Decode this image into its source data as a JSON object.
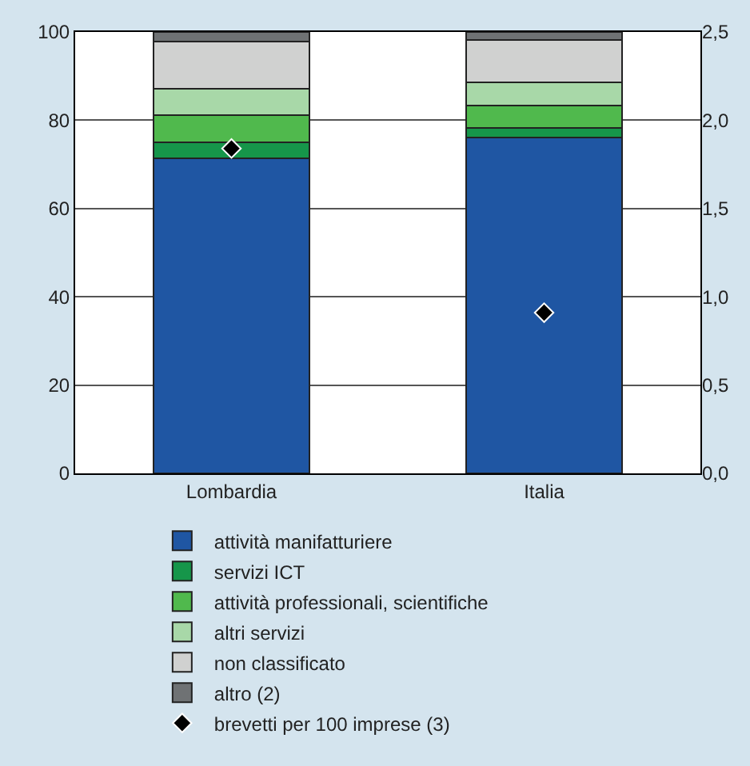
{
  "chart_data": {
    "type": "bar",
    "stacked": true,
    "categories": [
      "Lombardia",
      "Italia"
    ],
    "series": [
      {
        "name": "attività manifatturiere",
        "color": "#1f56a3",
        "values": [
          71.3,
          76.1
        ]
      },
      {
        "name": "servizi ICT",
        "color": "#16964a",
        "values": [
          3.7,
          2.2
        ]
      },
      {
        "name": "attività professionali, scientifiche",
        "color": "#50b94d",
        "values": [
          6.2,
          5.1
        ]
      },
      {
        "name": "altri servizi",
        "color": "#a8d8a8",
        "values": [
          5.9,
          5.2
        ]
      },
      {
        "name": "non classificato",
        "color": "#d0d1d0",
        "values": [
          10.8,
          9.5
        ]
      },
      {
        "name": "altro (2)",
        "color": "#6f7274",
        "values": [
          2.1,
          1.9
        ]
      },
      {
        "name": "brevetti per 100 imprese (3)",
        "type": "scatter",
        "axis": "y2",
        "marker": "diamond",
        "color": "#000000",
        "x": [
          "Lombardia",
          "Italia"
        ],
        "values": [
          1.84,
          0.91
        ]
      }
    ],
    "ylim": [
      0,
      100
    ],
    "yticks": [
      0,
      20,
      40,
      60,
      80,
      100
    ],
    "y2lim": [
      0,
      2.5
    ],
    "y2ticks": [
      {
        "value": 0,
        "label": "0,0"
      },
      {
        "value": 0.5,
        "label": "0,5"
      },
      {
        "value": 1,
        "label": "1,0"
      },
      {
        "value": 1.5,
        "label": "1,5"
      },
      {
        "value": 2,
        "label": "2,0"
      },
      {
        "value": 2.5,
        "label": "2,5"
      }
    ],
    "grid": "y",
    "legend": "bottom"
  }
}
